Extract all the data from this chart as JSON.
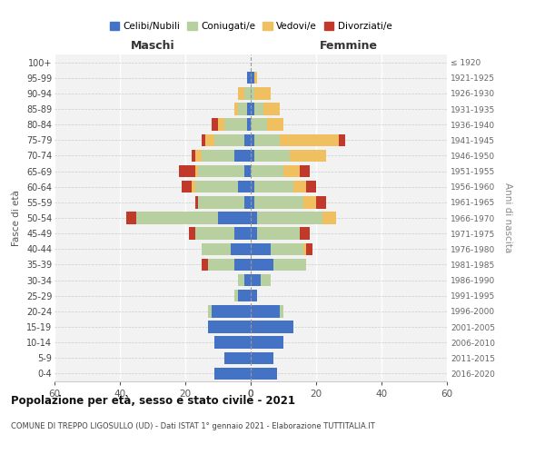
{
  "age_groups_bottom_to_top": [
    "0-4",
    "5-9",
    "10-14",
    "15-19",
    "20-24",
    "25-29",
    "30-34",
    "35-39",
    "40-44",
    "45-49",
    "50-54",
    "55-59",
    "60-64",
    "65-69",
    "70-74",
    "75-79",
    "80-84",
    "85-89",
    "90-94",
    "95-99",
    "100+"
  ],
  "birth_years_bottom_to_top": [
    "2016-2020",
    "2011-2015",
    "2006-2010",
    "2001-2005",
    "1996-2000",
    "1991-1995",
    "1986-1990",
    "1981-1985",
    "1976-1980",
    "1971-1975",
    "1966-1970",
    "1961-1965",
    "1956-1960",
    "1951-1955",
    "1946-1950",
    "1941-1945",
    "1936-1940",
    "1931-1935",
    "1926-1930",
    "1921-1925",
    "≤ 1920"
  ],
  "maschi": {
    "celibi": [
      11,
      8,
      11,
      13,
      12,
      4,
      2,
      5,
      6,
      5,
      10,
      2,
      4,
      2,
      5,
      2,
      1,
      1,
      0,
      1,
      0
    ],
    "coniugati": [
      0,
      0,
      0,
      0,
      1,
      1,
      2,
      8,
      9,
      12,
      25,
      14,
      13,
      14,
      10,
      9,
      7,
      3,
      2,
      0,
      0
    ],
    "vedovi": [
      0,
      0,
      0,
      0,
      0,
      0,
      0,
      0,
      0,
      0,
      0,
      0,
      1,
      1,
      2,
      3,
      2,
      1,
      2,
      0,
      0
    ],
    "divorziati": [
      0,
      0,
      0,
      0,
      0,
      0,
      0,
      2,
      0,
      2,
      3,
      1,
      3,
      5,
      1,
      1,
      2,
      0,
      0,
      0,
      0
    ]
  },
  "femmine": {
    "nubili": [
      8,
      7,
      10,
      13,
      9,
      2,
      3,
      7,
      6,
      2,
      2,
      1,
      1,
      0,
      1,
      1,
      0,
      1,
      0,
      1,
      0
    ],
    "coniugate": [
      0,
      0,
      0,
      0,
      1,
      0,
      3,
      10,
      10,
      13,
      20,
      15,
      12,
      10,
      11,
      8,
      5,
      3,
      1,
      0,
      0
    ],
    "vedove": [
      0,
      0,
      0,
      0,
      0,
      0,
      0,
      0,
      1,
      0,
      4,
      4,
      4,
      5,
      11,
      18,
      5,
      5,
      5,
      1,
      0
    ],
    "divorziate": [
      0,
      0,
      0,
      0,
      0,
      0,
      0,
      0,
      2,
      3,
      0,
      3,
      3,
      3,
      0,
      2,
      0,
      0,
      0,
      0,
      0
    ]
  },
  "colors": {
    "celibi": "#4472c4",
    "coniugati": "#b8cfa0",
    "vedovi": "#f0c060",
    "divorziati": "#c0392b"
  },
  "title": "Popolazione per età, sesso e stato civile - 2021",
  "subtitle": "COMUNE DI TREPPO LIGOSULLO (UD) - Dati ISTAT 1° gennaio 2021 - Elaborazione TUTTITALIA.IT",
  "label_maschi": "Maschi",
  "label_femmine": "Femmine",
  "ylabel_left": "Fasce di età",
  "ylabel_right": "Anni di nascita",
  "xlim": 60,
  "xticks": [
    0,
    20,
    40,
    60
  ],
  "legend_labels": [
    "Celibi/Nubili",
    "Coniugati/e",
    "Vedovi/e",
    "Divorziati/e"
  ],
  "bar_height": 0.78
}
